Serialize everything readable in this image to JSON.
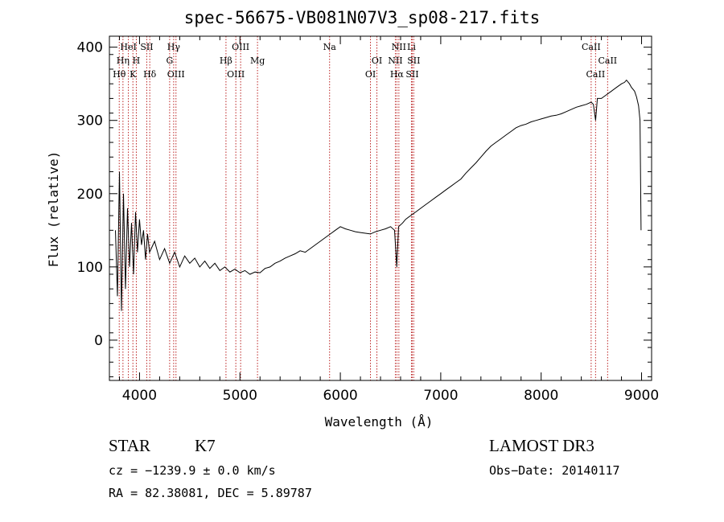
{
  "chart_data": {
    "type": "line",
    "title": "spec-56675-VB081N07V3_sp08-217.fits",
    "xlabel": "Wavelength (Å)",
    "ylabel": "Flux (relative)",
    "xlim": [
      3700,
      9100
    ],
    "ylim": [
      -55,
      415
    ],
    "x_ticks": [
      4000,
      5000,
      6000,
      7000,
      8000,
      9000
    ],
    "y_ticks": [
      0,
      100,
      200,
      300,
      400
    ],
    "series": [
      {
        "name": "flux",
        "x": [
          3760,
          3780,
          3800,
          3820,
          3840,
          3860,
          3880,
          3900,
          3920,
          3940,
          3960,
          3980,
          4000,
          4020,
          4040,
          4060,
          4080,
          4100,
          4150,
          4200,
          4250,
          4300,
          4350,
          4400,
          4450,
          4500,
          4550,
          4600,
          4650,
          4700,
          4750,
          4800,
          4850,
          4900,
          4950,
          5000,
          5050,
          5100,
          5150,
          5200,
          5250,
          5300,
          5350,
          5400,
          5450,
          5500,
          5550,
          5600,
          5650,
          5700,
          5750,
          5800,
          5850,
          5900,
          5950,
          6000,
          6050,
          6100,
          6150,
          6200,
          6250,
          6300,
          6350,
          6400,
          6450,
          6500,
          6540,
          6562,
          6580,
          6620,
          6650,
          6700,
          6750,
          6800,
          6850,
          6900,
          6950,
          7000,
          7050,
          7100,
          7150,
          7200,
          7250,
          7300,
          7350,
          7400,
          7450,
          7500,
          7550,
          7600,
          7650,
          7700,
          7750,
          7800,
          7850,
          7900,
          7950,
          8000,
          8050,
          8100,
          8150,
          8200,
          8250,
          8300,
          8350,
          8400,
          8450,
          8498,
          8520,
          8542,
          8560,
          8600,
          8650,
          8700,
          8750,
          8800,
          8830,
          8850,
          8880,
          8900,
          8930,
          8950,
          8970,
          8985,
          8995
        ],
        "y": [
          150,
          60,
          230,
          40,
          200,
          70,
          180,
          100,
          160,
          90,
          175,
          120,
          165,
          130,
          150,
          110,
          145,
          120,
          135,
          110,
          125,
          105,
          120,
          100,
          115,
          105,
          112,
          100,
          108,
          98,
          105,
          95,
          100,
          93,
          97,
          92,
          95,
          90,
          93,
          92,
          98,
          100,
          105,
          108,
          112,
          115,
          118,
          122,
          120,
          125,
          130,
          135,
          140,
          145,
          150,
          155,
          152,
          150,
          148,
          147,
          146,
          145,
          148,
          150,
          152,
          155,
          150,
          100,
          155,
          160,
          165,
          170,
          175,
          180,
          185,
          190,
          195,
          200,
          205,
          210,
          215,
          220,
          228,
          235,
          242,
          250,
          258,
          265,
          270,
          275,
          280,
          285,
          290,
          293,
          295,
          298,
          300,
          302,
          304,
          306,
          307,
          309,
          312,
          315,
          318,
          320,
          322,
          325,
          322,
          300,
          330,
          330,
          335,
          340,
          345,
          350,
          352,
          355,
          350,
          345,
          340,
          332,
          320,
          300,
          150
        ]
      }
    ],
    "lines": [
      {
        "label": "Hθ",
        "wavelength": 3798,
        "row": 3
      },
      {
        "label": "Hη",
        "wavelength": 3835,
        "row": 2
      },
      {
        "label": "HeI",
        "wavelength": 3889,
        "row": 1
      },
      {
        "label": "K",
        "wavelength": 3934,
        "row": 3
      },
      {
        "label": "H",
        "wavelength": 3968,
        "row": 2
      },
      {
        "label": "SII",
        "wavelength": 4072,
        "row": 1
      },
      {
        "label": "Hδ",
        "wavelength": 4102,
        "row": 3
      },
      {
        "label": "Hγ",
        "wavelength": 4340,
        "row": 1
      },
      {
        "label": "G",
        "wavelength": 4300,
        "row": 2
      },
      {
        "label": "OIII",
        "wavelength": 4363,
        "row": 3
      },
      {
        "label": "Hβ",
        "wavelength": 4861,
        "row": 2
      },
      {
        "label": "OIII",
        "wavelength": 4959,
        "row": 3
      },
      {
        "label": "OIII",
        "wavelength": 5007,
        "row": 1
      },
      {
        "label": "Mg",
        "wavelength": 5175,
        "row": 2
      },
      {
        "label": "Na",
        "wavelength": 5893,
        "row": 1
      },
      {
        "label": "OI",
        "wavelength": 6300,
        "row": 3
      },
      {
        "label": "OI",
        "wavelength": 6364,
        "row": 2
      },
      {
        "label": "NII",
        "wavelength": 6548,
        "row": 2
      },
      {
        "label": "Hα",
        "wavelength": 6563,
        "row": 3
      },
      {
        "label": "NII",
        "wavelength": 6583,
        "row": 1
      },
      {
        "label": "SII",
        "wavelength": 6716,
        "row": 3
      },
      {
        "label": "Li",
        "wavelength": 6708,
        "row": 1
      },
      {
        "label": "SII",
        "wavelength": 6731,
        "row": 2
      },
      {
        "label": "CaII",
        "wavelength": 8498,
        "row": 1
      },
      {
        "label": "CaII",
        "wavelength": 8542,
        "row": 3
      },
      {
        "label": "CaII",
        "wavelength": 8662,
        "row": 2
      }
    ]
  },
  "info": {
    "class": "STAR",
    "subclass": "K7",
    "survey": "LAMOST DR3",
    "cz": "cz = −1239.9 ± 0.0 km/s",
    "obs_date": "Obs−Date: 20140117",
    "radec": "RA =  82.38081, DEC =   5.89787"
  }
}
